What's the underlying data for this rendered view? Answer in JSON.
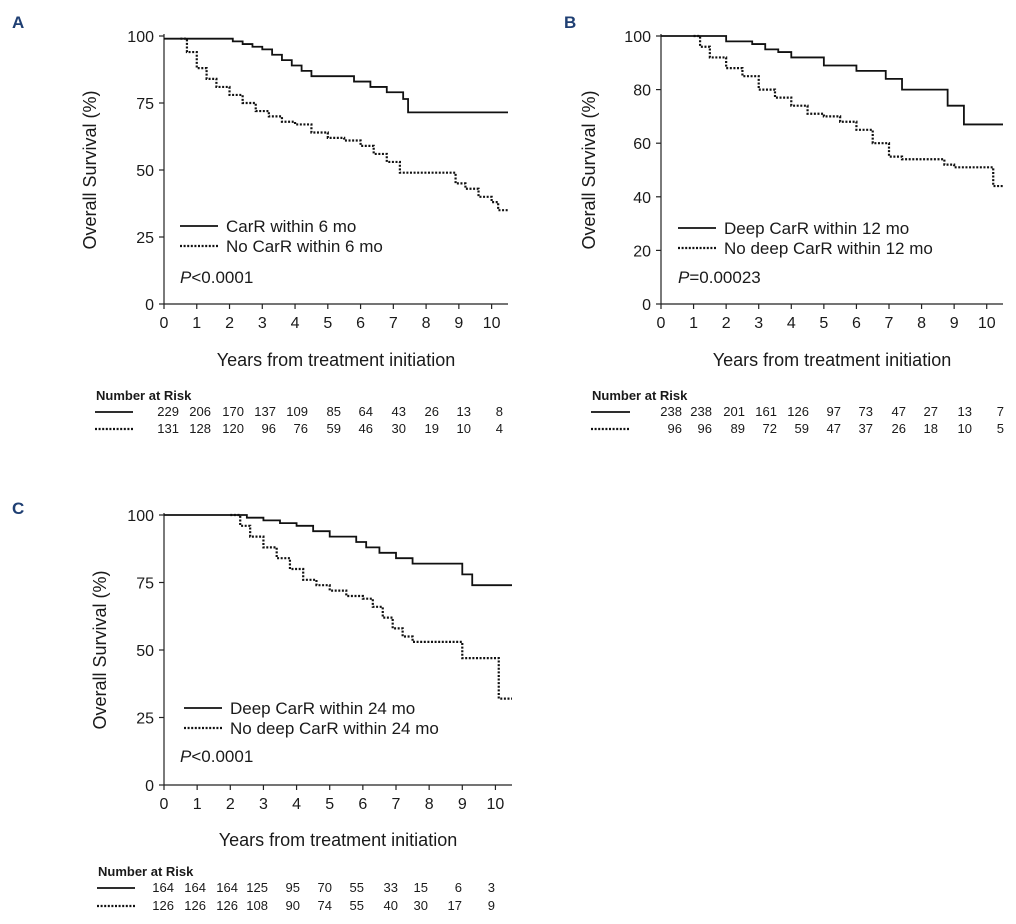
{
  "chart_data": [
    {
      "panel_label": "A",
      "type": "line",
      "subtype": "kaplan-meier",
      "xlabel": "Years from treatment initiation",
      "ylabel": "Overall Survival (%)",
      "xlim": [
        0,
        10.5
      ],
      "ylim": [
        0,
        100
      ],
      "xticks": [
        0,
        1,
        2,
        3,
        4,
        5,
        6,
        7,
        8,
        9,
        10
      ],
      "yticks": [
        0,
        25,
        50,
        75,
        100
      ],
      "pvalue_prefix": "P",
      "pvalue_rest": "<0.0001",
      "series": [
        {
          "name": "CarR within 6 mo",
          "style": "solid",
          "x": [
            0,
            0.5,
            1.2,
            1.8,
            2.1,
            2.4,
            2.7,
            3.0,
            3.3,
            3.6,
            3.9,
            4.2,
            4.5,
            5.0,
            5.8,
            6.3,
            6.8,
            7.3,
            7.45,
            8.0,
            10.5
          ],
          "y": [
            99,
            99,
            99,
            99,
            98,
            97,
            96,
            95,
            93,
            91,
            89,
            87,
            85,
            85,
            83,
            81,
            79,
            76.5,
            71.5,
            71.5,
            71.5
          ]
        },
        {
          "name": "No CarR within 6 mo",
          "style": "dotted",
          "x": [
            0.5,
            0.7,
            1.0,
            1.3,
            1.6,
            2.0,
            2.4,
            2.8,
            3.2,
            3.6,
            4.0,
            4.5,
            5.0,
            5.5,
            6.0,
            6.4,
            6.8,
            7.2,
            7.8,
            8.5,
            8.9,
            9.2,
            9.6,
            10.0,
            10.2,
            10.5
          ],
          "y": [
            99,
            94,
            88,
            84,
            81,
            78,
            75,
            72,
            70,
            68,
            67,
            64,
            62,
            61,
            59,
            56,
            53,
            49,
            49,
            49,
            45,
            43,
            40,
            38,
            35,
            35
          ]
        }
      ],
      "risk_table": {
        "title": "Number at Risk",
        "rows": [
          {
            "style": "solid",
            "values": [
              "229",
              "206",
              "170",
              "137",
              "109",
              "85",
              "64",
              "43",
              "26",
              "13",
              "8"
            ]
          },
          {
            "style": "dotted",
            "values": [
              "131",
              "128",
              "120",
              "96",
              "76",
              "59",
              "46",
              "30",
              "19",
              "10",
              "4"
            ]
          }
        ]
      }
    },
    {
      "panel_label": "B",
      "type": "line",
      "subtype": "kaplan-meier",
      "xlabel": "Years from treatment initiation",
      "ylabel": "Overall Survival (%)",
      "xlim": [
        0,
        10.5
      ],
      "ylim": [
        0,
        100
      ],
      "xticks": [
        0,
        1,
        2,
        3,
        4,
        5,
        6,
        7,
        8,
        9,
        10
      ],
      "yticks": [
        0,
        20,
        40,
        60,
        80,
        100
      ],
      "pvalue_prefix": "P",
      "pvalue_rest": "=0.00023",
      "series": [
        {
          "name": "Deep CarR within 12 mo",
          "style": "solid",
          "x": [
            0,
            1.5,
            2.0,
            2.8,
            3.2,
            3.6,
            4.0,
            4.6,
            5.0,
            6.0,
            6.9,
            7.4,
            8.8,
            9.3,
            10.5
          ],
          "y": [
            100,
            100,
            98,
            97,
            95,
            94,
            92,
            92,
            89,
            87,
            84,
            80,
            74,
            67,
            67
          ]
        },
        {
          "name": "No deep CarR within 12 mo",
          "style": "dotted",
          "x": [
            1.0,
            1.2,
            1.5,
            2.0,
            2.5,
            3.0,
            3.5,
            4.0,
            4.5,
            5.0,
            5.5,
            6.0,
            6.5,
            7.0,
            7.4,
            8.0,
            8.7,
            9.0,
            9.5,
            10.0,
            10.2,
            10.5
          ],
          "y": [
            100,
            96,
            92,
            88,
            85,
            80,
            77,
            74,
            71,
            70,
            68,
            65,
            60,
            55,
            54,
            54,
            52,
            51,
            51,
            51,
            44,
            44
          ]
        }
      ],
      "risk_table": {
        "title": "Number at Risk",
        "rows": [
          {
            "style": "solid",
            "values": [
              "238",
              "238",
              "201",
              "161",
              "126",
              "97",
              "73",
              "47",
              "27",
              "13",
              "7"
            ]
          },
          {
            "style": "dotted",
            "values": [
              "96",
              "96",
              "89",
              "72",
              "59",
              "47",
              "37",
              "26",
              "18",
              "10",
              "5"
            ]
          }
        ]
      }
    },
    {
      "panel_label": "C",
      "type": "line",
      "subtype": "kaplan-meier",
      "xlabel": "Years from treatment initiation",
      "ylabel": "Overall Survival (%)",
      "xlim": [
        0,
        10.5
      ],
      "ylim": [
        0,
        100
      ],
      "xticks": [
        0,
        1,
        2,
        3,
        4,
        5,
        6,
        7,
        8,
        9,
        10
      ],
      "yticks": [
        0,
        25,
        50,
        75,
        100
      ],
      "pvalue_prefix": "P",
      "pvalue_rest": "<0.0001",
      "series": [
        {
          "name": "Deep CarR within 24 mo",
          "style": "solid",
          "x": [
            0,
            2.0,
            2.5,
            3.0,
            3.5,
            4.0,
            4.5,
            5.0,
            5.8,
            6.1,
            6.5,
            7.0,
            7.5,
            8.5,
            9.0,
            9.3,
            10.5
          ],
          "y": [
            100,
            100,
            99,
            98,
            97,
            96,
            94,
            92,
            90,
            88,
            86,
            84,
            82,
            82,
            78,
            74,
            74
          ],
          "tail": 74
        },
        {
          "name": "No deep CarR within 24 mo",
          "style": "dotted",
          "x": [
            2.0,
            2.3,
            2.6,
            3.0,
            3.4,
            3.8,
            4.2,
            4.6,
            5.0,
            5.5,
            6.0,
            6.3,
            6.6,
            6.9,
            7.2,
            7.5,
            8.0,
            8.8,
            9.0,
            9.5,
            10.0,
            10.1,
            10.5
          ],
          "y": [
            100,
            96,
            92,
            88,
            84,
            80,
            76,
            74,
            72,
            70,
            69,
            66,
            62,
            58,
            55,
            53,
            53,
            53,
            47,
            47,
            47,
            32,
            32
          ]
        }
      ],
      "risk_table": {
        "title": "Number at Risk",
        "rows": [
          {
            "style": "solid",
            "values": [
              "164",
              "164",
              "164",
              "125",
              "95",
              "70",
              "55",
              "33",
              "15",
              "6",
              "3"
            ]
          },
          {
            "style": "dotted",
            "values": [
              "126",
              "126",
              "126",
              "108",
              "90",
              "74",
              "55",
              "40",
              "30",
              "17",
              "9"
            ]
          }
        ]
      }
    }
  ]
}
